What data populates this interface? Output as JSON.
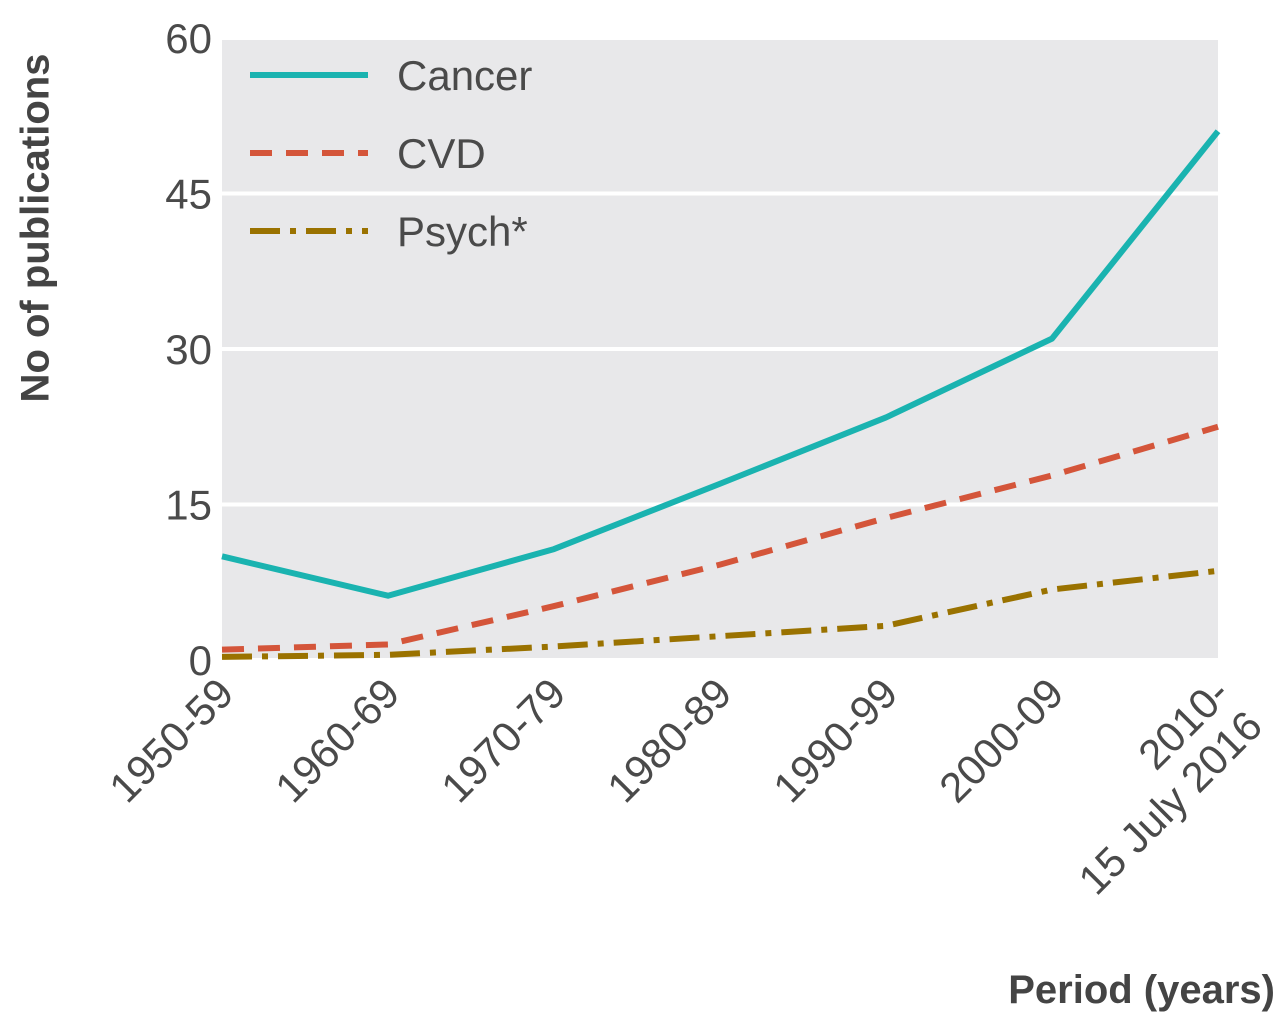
{
  "chart_data": {
    "type": "line",
    "x_label": "Period (years)",
    "y_label": "No of publications",
    "categories": [
      "1950-59",
      "1960-69",
      "1970-79",
      "1980-89",
      "1990-99",
      "2000-09",
      "2010-\n15 July 2016"
    ],
    "series": [
      {
        "name": "Cancer",
        "color": "#1ab3b0",
        "dash": "solid",
        "values": [
          10,
          6.2,
          10.7,
          17,
          23.4,
          31,
          51
        ]
      },
      {
        "name": "CVD",
        "color": "#d4553a",
        "dash": "dashed",
        "values": [
          1,
          1.5,
          5.2,
          9.2,
          13.7,
          17.8,
          22.5
        ]
      },
      {
        "name": "Psych*",
        "color": "#9a7200",
        "dash": "dashdot",
        "values": [
          0.3,
          0.5,
          1.3,
          2.3,
          3.3,
          6.8,
          8.6
        ]
      }
    ],
    "ylim": [
      0,
      60
    ],
    "yticks": [
      0,
      15,
      30,
      45,
      60
    ],
    "grid": true,
    "legend": "upper left"
  }
}
